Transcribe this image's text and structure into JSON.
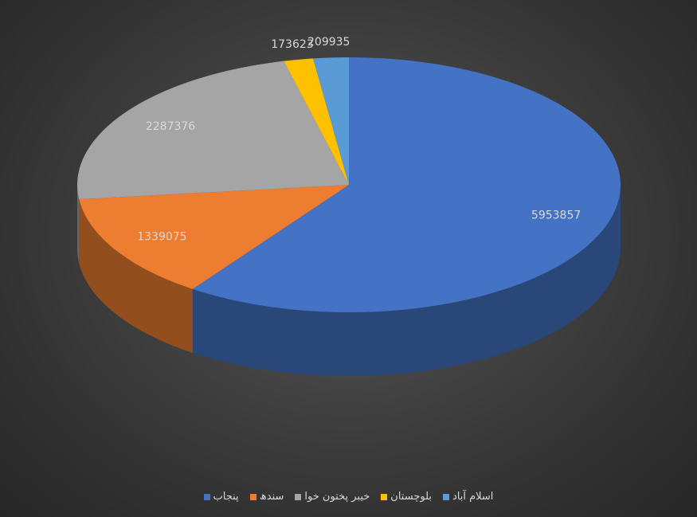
{
  "chart_data": {
    "type": "pie3d",
    "categories": [
      "پنجاب",
      "سندھ",
      "خیبر پختون خوا",
      "بلوچستان",
      "اسلام آباد"
    ],
    "values": [
      5953857,
      1339075,
      2287376,
      173623,
      209935
    ],
    "colors": [
      "#4472c4",
      "#ed7d31",
      "#a5a5a5",
      "#ffc000",
      "#5b9bd5"
    ]
  }
}
